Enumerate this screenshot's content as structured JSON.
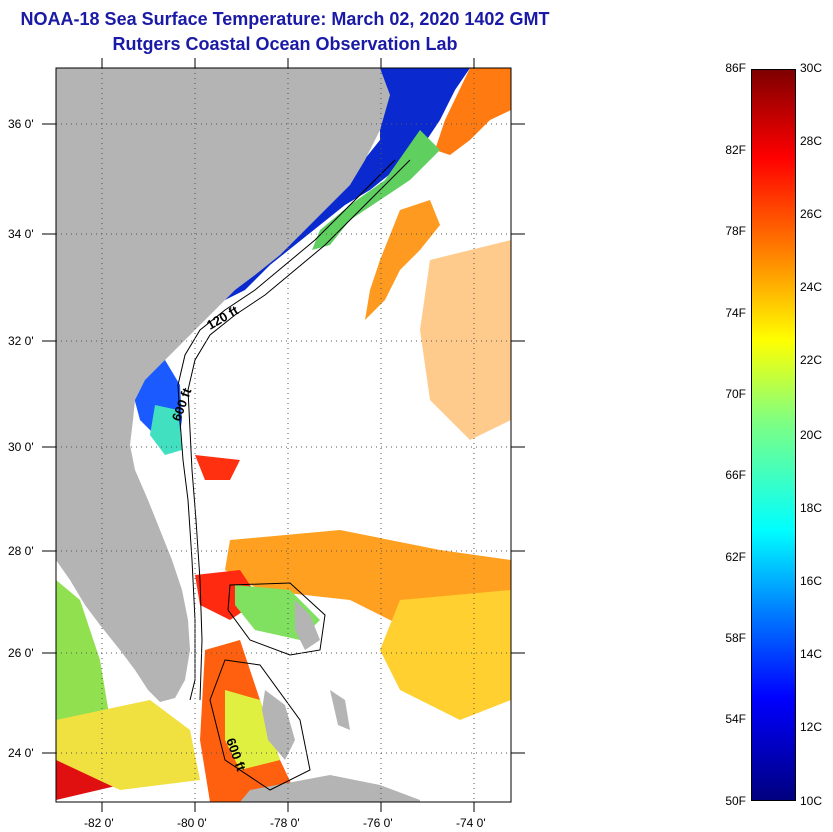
{
  "title": "NOAA-18 Sea Surface Temperature:  March 02, 2020 1402 GMT",
  "subtitle": "Rutgers Coastal Ocean Observation Lab",
  "map": {
    "lat_labels": [
      "36 0'",
      "34 0'",
      "32 0'",
      "30 0'",
      "28 0'",
      "26 0'",
      "24 0'"
    ],
    "lon_labels": [
      "-82 0'",
      "-80 0'",
      "-78 0'",
      "-76 0'",
      "-74 0'"
    ],
    "contour_labels": [
      "120 ft",
      "600 ft",
      "600 ft"
    ],
    "land_color": "#b4b4b4",
    "cloud_color": "#ffffff"
  },
  "colorbar": {
    "fahrenheit": [
      "86F",
      "82F",
      "78F",
      "74F",
      "70F",
      "66F",
      "62F",
      "58F",
      "54F",
      "50F"
    ],
    "celsius": [
      "30C",
      "28C",
      "26C",
      "24C",
      "22C",
      "20C",
      "18C",
      "16C",
      "14C",
      "12C",
      "10C"
    ]
  }
}
